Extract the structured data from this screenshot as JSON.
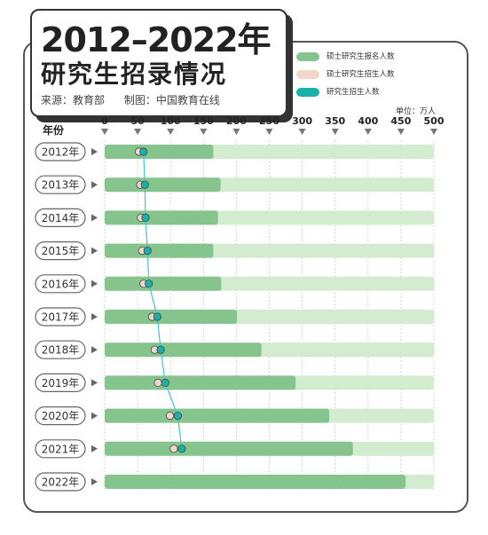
{
  "header": {
    "title": "2012–2022年",
    "subtitle": "研究生招录情况",
    "source": "来源：教育部",
    "credit": "制图：中国教育在线"
  },
  "legend": [
    {
      "label": "硕士研究生报名人数",
      "color": "#86c48e"
    },
    {
      "label": "硕士研究生招生人数",
      "color": "#f3d6cb"
    },
    {
      "label": "研究生招生人数",
      "color": "#1ab1a9"
    }
  ],
  "unit": "单位：万人",
  "year_header": "年份",
  "colors": {
    "bar_fill": "#86c48e",
    "bar_track": "#d3ebcf",
    "masters_enroll": "#f3d6cb",
    "grad_enroll": "#1ab1a9",
    "axis_triangle": "#777777"
  },
  "chart_data": {
    "type": "bar",
    "orientation": "horizontal",
    "title": "2012–2022年研究生招录情况",
    "xlabel": "单位：万人",
    "ylabel": "年份",
    "xlim": [
      0,
      500
    ],
    "x_ticks": [
      0,
      50,
      100,
      150,
      200,
      250,
      300,
      350,
      400,
      450,
      500
    ],
    "categories": [
      "2012年",
      "2013年",
      "2014年",
      "2015年",
      "2016年",
      "2017年",
      "2018年",
      "2019年",
      "2020年",
      "2021年",
      "2022年"
    ],
    "series": [
      {
        "name": "硕士研究生报名人数",
        "type": "bar",
        "values": [
          165,
          176,
          172,
          165,
          177,
          201,
          238,
          290,
          341,
          377,
          457
        ]
      },
      {
        "name": "硕士研究生招生人数",
        "type": "point",
        "values": [
          52,
          54,
          55,
          57,
          59,
          72,
          76,
          81,
          99,
          105,
          null
        ]
      },
      {
        "name": "研究生招生人数",
        "type": "line",
        "values": [
          59,
          61,
          62,
          65,
          67,
          80,
          85,
          92,
          111,
          117,
          null
        ]
      }
    ]
  }
}
